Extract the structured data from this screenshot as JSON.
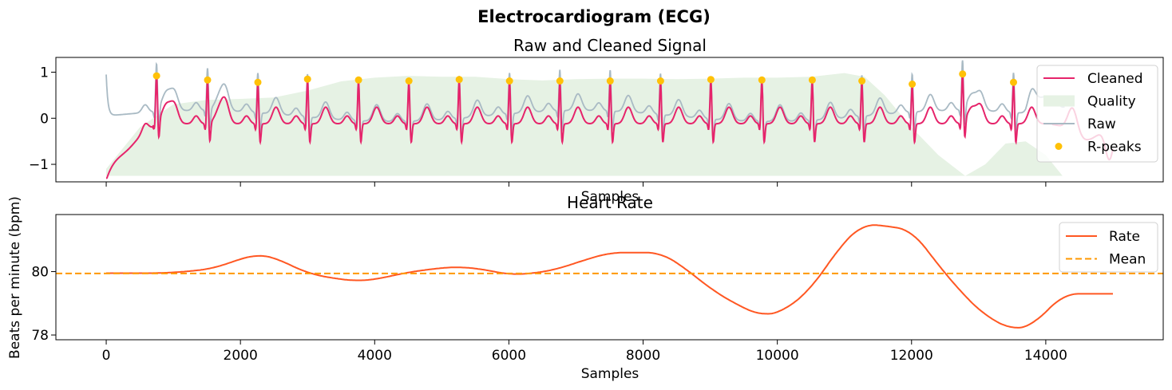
{
  "figure": {
    "title": "Electrocardiogram (ECG)"
  },
  "chart_data": [
    {
      "type": "line",
      "title": "Raw and Cleaned Signal",
      "xlabel": "Samples",
      "ylabel": "",
      "xlim": [
        -750,
        15750
      ],
      "ylim": [
        -1.38,
        1.32
      ],
      "yticks": [
        -1,
        0,
        1
      ],
      "ytick_labels": [
        "−1",
        "0",
        "1"
      ],
      "x_tick_labels_visible": false,
      "grid": false,
      "legend_position": "top-right",
      "r_peaks": {
        "name": "R-peaks",
        "color": "#ffc107",
        "x": [
          750,
          1510,
          2260,
          3000,
          3760,
          4510,
          5260,
          6010,
          6760,
          7510,
          8260,
          9010,
          9770,
          10520,
          11260,
          12010,
          12760,
          13520
        ],
        "y": [
          0.92,
          0.83,
          0.78,
          0.85,
          0.83,
          0.81,
          0.84,
          0.81,
          0.81,
          0.81,
          0.81,
          0.84,
          0.83,
          0.83,
          0.81,
          0.74,
          0.96,
          0.78
        ]
      },
      "series": [
        {
          "name": "Cleaned",
          "color": "#e6246b",
          "style": "solid"
        },
        {
          "name": "Quality",
          "color": "#e6f2e4",
          "style": "fill",
          "baseline": -1.25,
          "x": [
            0,
            500,
            1000,
            1500,
            2000,
            2500,
            3000,
            3500,
            4000,
            4500,
            5000,
            5500,
            6000,
            6500,
            7000,
            7500,
            8000,
            8500,
            9000,
            9500,
            10000,
            10500,
            11000,
            11300,
            11600,
            12000,
            12400,
            12800,
            13100,
            13400,
            13700,
            14000,
            14250
          ],
          "y": [
            -1.1,
            -0.2,
            0.3,
            0.4,
            0.42,
            0.45,
            0.6,
            0.8,
            0.88,
            0.92,
            0.9,
            0.9,
            0.85,
            0.82,
            0.85,
            0.86,
            0.86,
            0.85,
            0.86,
            0.88,
            0.88,
            0.9,
            0.98,
            0.9,
            0.5,
            -0.2,
            -0.8,
            -1.25,
            -1.0,
            -0.55,
            -0.5,
            -0.8,
            -1.25
          ]
        },
        {
          "name": "Raw",
          "color": "#a9bac4",
          "style": "solid"
        },
        {
          "name": "R-peaks",
          "color": "#ffc107",
          "style": "marker"
        }
      ]
    },
    {
      "type": "line",
      "title": "Heart Rate",
      "xlabel": "Samples",
      "ylabel": "Beats per minute (bpm)",
      "xlim": [
        -750,
        15750
      ],
      "ylim": [
        77.85,
        81.8
      ],
      "xticks": [
        0,
        2000,
        4000,
        6000,
        8000,
        10000,
        12000,
        14000
      ],
      "yticks": [
        78,
        80
      ],
      "grid": false,
      "legend_position": "top-right",
      "series": [
        {
          "name": "Rate",
          "color": "#ff5722",
          "style": "solid",
          "x": [
            0,
            800,
            1200,
            1600,
            2000,
            2260,
            2500,
            2800,
            3000,
            3400,
            3760,
            4000,
            4500,
            5000,
            5260,
            5600,
            6010,
            6400,
            6760,
            7100,
            7510,
            8000,
            8260,
            8600,
            9010,
            9400,
            9770,
            10100,
            10520,
            10900,
            11260,
            11600,
            12010,
            12400,
            12760,
            13100,
            13520,
            13800,
            14270,
            15000
          ],
          "y": [
            79.95,
            79.95,
            80.0,
            80.1,
            80.4,
            80.55,
            80.45,
            80.15,
            79.95,
            79.78,
            79.7,
            79.75,
            79.98,
            80.12,
            80.15,
            80.08,
            79.9,
            79.95,
            80.1,
            80.35,
            80.6,
            80.6,
            80.6,
            80.15,
            79.45,
            78.95,
            78.6,
            78.75,
            79.5,
            80.7,
            81.5,
            81.45,
            81.3,
            80.2,
            79.3,
            78.6,
            78.15,
            78.3,
            79.3,
            79.3
          ]
        },
        {
          "name": "Mean",
          "color": "#ff9800",
          "style": "dashed",
          "value": 79.94
        }
      ]
    }
  ]
}
